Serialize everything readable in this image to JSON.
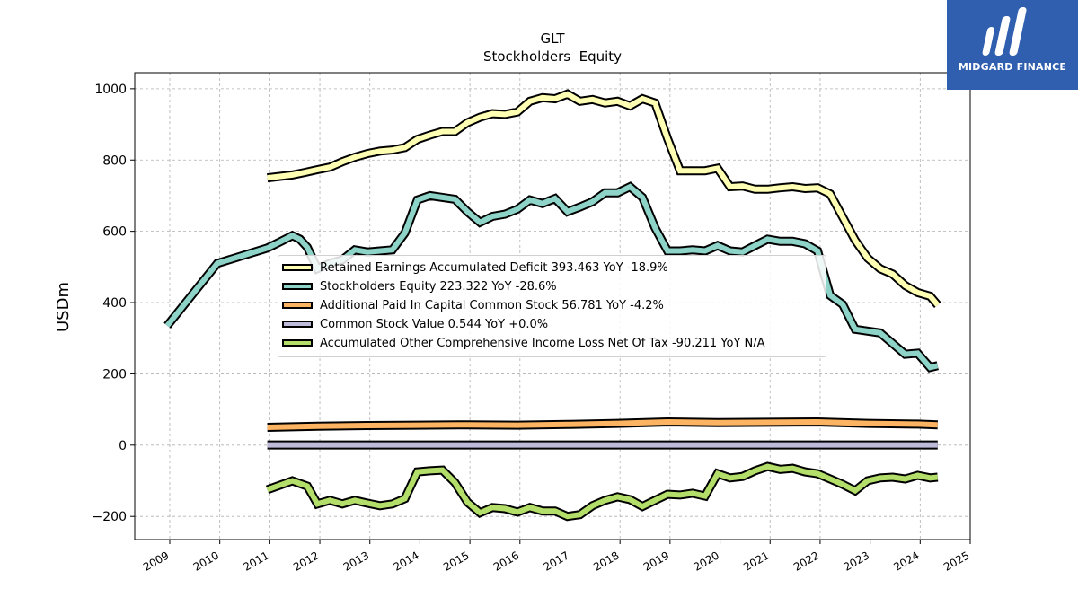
{
  "brand": {
    "name": "MIDGARD FINANCE",
    "bg_color": "#2f5fae"
  },
  "chart_data": {
    "type": "line",
    "title": "GLT",
    "subtitle": "Stockholders  Equity",
    "ylabel": "USDm",
    "xlabel": "",
    "xlim": [
      2008.3,
      2025.0
    ],
    "ylim": [
      -265,
      1045
    ],
    "yticks": [
      -200,
      0,
      200,
      400,
      600,
      800,
      1000
    ],
    "ytick_labels": [
      "−200",
      "0",
      "200",
      "400",
      "600",
      "800",
      "1000"
    ],
    "xticks": [
      2009,
      2010,
      2011,
      2012,
      2013,
      2014,
      2015,
      2016,
      2017,
      2018,
      2019,
      2020,
      2021,
      2022,
      2023,
      2024,
      2025
    ],
    "xtick_labels": [
      "2009",
      "2010",
      "2011",
      "2012",
      "2013",
      "2014",
      "2015",
      "2016",
      "2017",
      "2018",
      "2019",
      "2020",
      "2021",
      "2022",
      "2023",
      "2024",
      "2025"
    ],
    "grid": true,
    "legend_position": "center",
    "series": [
      {
        "name": "Retained Earnings Accumulated Deficit",
        "legend_label": "Retained Earnings Accumulated Deficit  393.463 YoY -18.9%",
        "color": "#ffffb3",
        "x": [
          2010.95,
          2011.45,
          2011.7,
          2011.95,
          2012.2,
          2012.45,
          2012.7,
          2012.95,
          2013.2,
          2013.45,
          2013.7,
          2013.95,
          2014.2,
          2014.45,
          2014.7,
          2014.95,
          2015.2,
          2015.45,
          2015.7,
          2015.95,
          2016.2,
          2016.45,
          2016.7,
          2016.95,
          2017.2,
          2017.45,
          2017.7,
          2017.95,
          2018.2,
          2018.45,
          2018.7,
          2018.95,
          2019.2,
          2019.45,
          2019.7,
          2019.95,
          2020.2,
          2020.45,
          2020.7,
          2020.95,
          2021.2,
          2021.45,
          2021.7,
          2021.95,
          2022.2,
          2022.45,
          2022.7,
          2022.95,
          2023.2,
          2023.45,
          2023.7,
          2023.95,
          2024.2,
          2024.35
        ],
        "y": [
          750,
          758,
          765,
          773,
          780,
          795,
          808,
          818,
          825,
          828,
          835,
          858,
          870,
          880,
          880,
          905,
          920,
          930,
          928,
          935,
          965,
          975,
          972,
          985,
          965,
          970,
          960,
          965,
          952,
          972,
          960,
          860,
          770,
          770,
          770,
          777,
          725,
          727,
          718,
          718,
          722,
          725,
          720,
          722,
          705,
          640,
          575,
          525,
          495,
          480,
          448,
          428,
          418,
          393
        ]
      },
      {
        "name": "Stockholders Equity",
        "legend_label": "Stockholders Equity  223.322 YoY -28.6%",
        "color": "#8dd3c7",
        "x": [
          2008.95,
          2009.95,
          2010.95,
          2011.2,
          2011.45,
          2011.6,
          2011.75,
          2011.95,
          2012.2,
          2012.45,
          2012.7,
          2012.95,
          2013.2,
          2013.45,
          2013.7,
          2013.95,
          2014.2,
          2014.45,
          2014.7,
          2014.95,
          2015.2,
          2015.45,
          2015.7,
          2015.95,
          2016.2,
          2016.45,
          2016.7,
          2016.95,
          2017.2,
          2017.45,
          2017.7,
          2017.95,
          2018.2,
          2018.45,
          2018.7,
          2018.95,
          2019.2,
          2019.45,
          2019.7,
          2019.95,
          2020.2,
          2020.45,
          2020.7,
          2020.95,
          2021.2,
          2021.45,
          2021.7,
          2021.95,
          2022.2,
          2022.45,
          2022.7,
          2022.95,
          2023.2,
          2023.45,
          2023.7,
          2023.95,
          2024.2,
          2024.35
        ],
        "y": [
          335,
          510,
          553,
          570,
          588,
          578,
          555,
          495,
          510,
          520,
          548,
          542,
          545,
          548,
          595,
          688,
          700,
          695,
          690,
          655,
          625,
          642,
          648,
          662,
          688,
          678,
          692,
          655,
          668,
          683,
          708,
          708,
          725,
          695,
          610,
          545,
          545,
          548,
          545,
          560,
          545,
          542,
          560,
          578,
          572,
          572,
          565,
          545,
          420,
          395,
          325,
          320,
          315,
          285,
          255,
          258,
          218,
          223
        ]
      },
      {
        "name": "Additional Paid In Capital Common Stock",
        "legend_label": "Additional Paid In Capital Common Stock  56.781 YoY -4.2%",
        "color": "#fdb462",
        "x": [
          2010.95,
          2011.95,
          2012.95,
          2013.95,
          2014.95,
          2015.95,
          2016.95,
          2017.95,
          2018.95,
          2019.95,
          2020.95,
          2021.95,
          2022.95,
          2023.95,
          2024.35
        ],
        "y": [
          50,
          53,
          55,
          56,
          57,
          56,
          58,
          61,
          65,
          63,
          64,
          65,
          61,
          59,
          57
        ]
      },
      {
        "name": "Common Stock Value",
        "legend_label": "Common Stock Value  0.544 YoY +0.0%",
        "color": "#bebada",
        "x": [
          2010.95,
          2024.35
        ],
        "y": [
          0.5,
          0.544
        ]
      },
      {
        "name": "Accumulated Other Comprehensive Income Loss Net Of Tax",
        "legend_label": "Accumulated Other Comprehensive Income Loss Net Of Tax  -90.211 YoY N/A",
        "color": "#b3de69",
        "x": [
          2010.95,
          2011.45,
          2011.75,
          2011.95,
          2012.2,
          2012.45,
          2012.7,
          2012.95,
          2013.2,
          2013.45,
          2013.7,
          2013.95,
          2014.2,
          2014.45,
          2014.7,
          2014.95,
          2015.2,
          2015.45,
          2015.7,
          2015.95,
          2016.2,
          2016.45,
          2016.7,
          2016.95,
          2017.2,
          2017.45,
          2017.7,
          2017.95,
          2018.2,
          2018.45,
          2018.7,
          2018.95,
          2019.2,
          2019.45,
          2019.7,
          2019.95,
          2020.2,
          2020.45,
          2020.7,
          2020.95,
          2021.2,
          2021.45,
          2021.7,
          2021.95,
          2022.2,
          2022.45,
          2022.7,
          2022.95,
          2023.2,
          2023.45,
          2023.7,
          2023.95,
          2024.2,
          2024.35
        ],
        "y": [
          -125,
          -100,
          -115,
          -165,
          -155,
          -165,
          -155,
          -163,
          -170,
          -165,
          -150,
          -75,
          -72,
          -70,
          -105,
          -160,
          -190,
          -175,
          -178,
          -188,
          -175,
          -185,
          -185,
          -200,
          -195,
          -170,
          -155,
          -145,
          -153,
          -172,
          -155,
          -138,
          -140,
          -135,
          -143,
          -80,
          -92,
          -88,
          -72,
          -60,
          -68,
          -65,
          -75,
          -80,
          -95,
          -110,
          -128,
          -100,
          -92,
          -90,
          -95,
          -85,
          -92,
          -90
        ]
      }
    ]
  }
}
